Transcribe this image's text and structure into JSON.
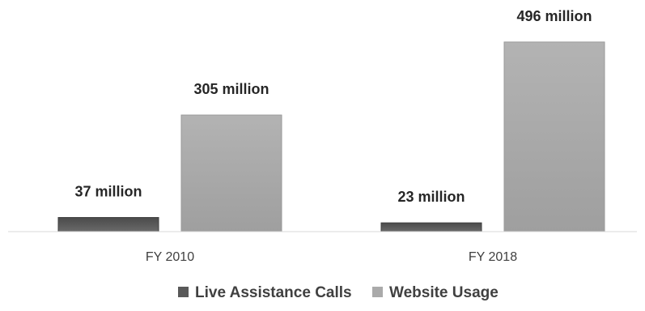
{
  "chart_data": {
    "type": "bar",
    "title": "",
    "xlabel": "",
    "ylabel": "",
    "categories": [
      "FY 2010",
      "FY 2018"
    ],
    "series": [
      {
        "name": "Live Assistance Calls",
        "values": [
          37,
          23
        ],
        "data_labels": [
          "37 million",
          "23 million"
        ],
        "color": "#595959"
      },
      {
        "name": "Website Usage",
        "values": [
          305,
          496
        ],
        "data_labels": [
          "305 million",
          "496 million"
        ],
        "color": "#aaaaaa"
      }
    ],
    "units": "million",
    "ylim": [
      0,
      500
    ],
    "grid": false,
    "legend_position": "bottom"
  }
}
